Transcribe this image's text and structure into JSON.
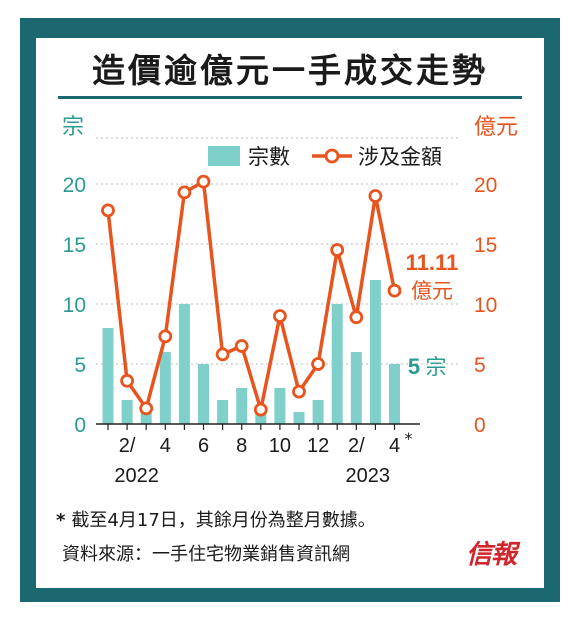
{
  "title": "造價逾億元一手成交走勢",
  "note_marker": "*",
  "note": "截至4月17日，其餘月份為整月數據。",
  "source": "資料來源：一手住宅物業銷售資訊網",
  "logo": "信報",
  "colors": {
    "frame": "#1b6870",
    "bar": "#7fcfcb",
    "line": "#e8541e",
    "axis_left": "#2a9a94",
    "axis_right": "#e8541e"
  },
  "chart_data": {
    "type": "bar+line",
    "left_unit": "宗",
    "right_unit": "億元",
    "left_ticks": [
      "0",
      "5",
      "10",
      "15",
      "20"
    ],
    "right_ticks": [
      "0",
      "5",
      "10",
      "15",
      "20"
    ],
    "ylim_left": [
      0,
      20
    ],
    "ylim_right": [
      0,
      20
    ],
    "x_tick_labels": [
      "2/",
      "4",
      "6",
      "8",
      "10",
      "12",
      "2/",
      "4*"
    ],
    "x_year_labels": [
      "2022",
      "2023"
    ],
    "months": [
      "2022-01",
      "2022-02",
      "2022-03",
      "2022-04",
      "2022-05",
      "2022-06",
      "2022-07",
      "2022-08",
      "2022-09",
      "2022-10",
      "2022-11",
      "2022-12",
      "2023-01",
      "2023-02",
      "2023-03",
      "2023-04"
    ],
    "series": [
      {
        "name": "宗數",
        "type": "bar",
        "values": [
          8,
          2,
          1,
          6,
          10,
          5,
          2,
          3,
          1,
          3,
          1,
          2,
          10,
          6,
          12,
          5
        ]
      },
      {
        "name": "涉及金額",
        "type": "line",
        "values": [
          17.8,
          3.6,
          1.3,
          7.3,
          19.3,
          20.2,
          5.8,
          6.5,
          1.2,
          9.0,
          2.7,
          5.0,
          14.5,
          8.9,
          19.0,
          11.11
        ]
      }
    ],
    "annotations": {
      "last_amount": "11.11",
      "last_amount_unit": "億元",
      "last_count": "5",
      "last_count_unit": "宗"
    },
    "legend_position": "top-right",
    "grid": "dotted horizontal"
  }
}
